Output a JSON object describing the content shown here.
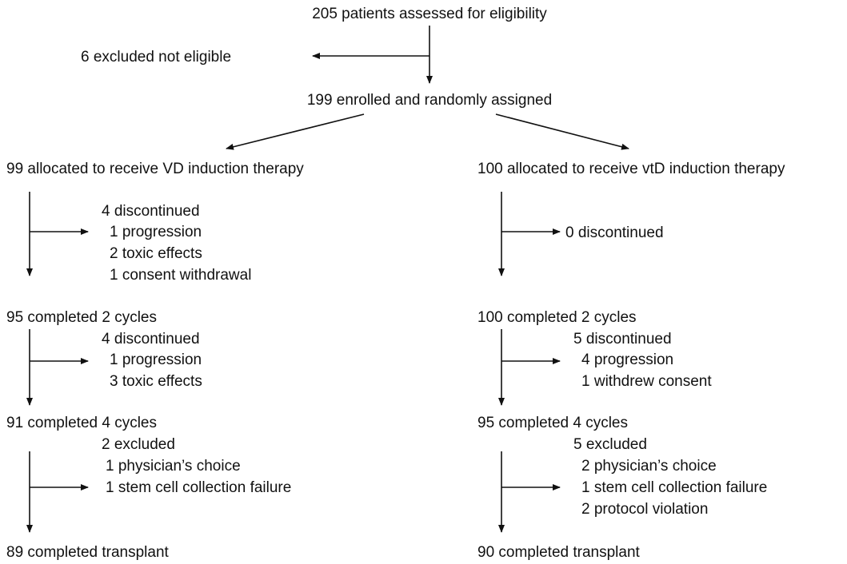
{
  "nodes": [
    {
      "label": "205 patients assessed for eligibility"
    },
    {
      "label": "6 excluded not eligible"
    },
    {
      "label": "199 enrolled and randomly assigned"
    },
    {
      "label": "99 allocated to receive VD induction therapy"
    },
    {
      "label": "100 allocated to receive vtD induction therapy"
    },
    {
      "label": "4 discontinued"
    },
    {
      "label": "1 progression"
    },
    {
      "label": "2 toxic effects"
    },
    {
      "label": "1 consent withdrawal"
    },
    {
      "label": "0 discontinued"
    },
    {
      "label": "95 completed 2 cycles"
    },
    {
      "label": "100 completed 2 cycles"
    },
    {
      "label": "4 discontinued"
    },
    {
      "label": "1 progression"
    },
    {
      "label": "3 toxic effects"
    },
    {
      "label": "5 discontinued"
    },
    {
      "label": "4 progression"
    },
    {
      "label": "1 withdrew consent"
    },
    {
      "label": "91 completed 4 cycles"
    },
    {
      "label": "95 completed 4 cycles"
    },
    {
      "label": "2 excluded"
    },
    {
      "label": "1 physician’s choice"
    },
    {
      "label": "1 stem cell collection failure"
    },
    {
      "label": "5 excluded"
    },
    {
      "label": "2 physician’s choice"
    },
    {
      "label": "1 stem cell collection failure"
    },
    {
      "label": "2 protocol violation"
    },
    {
      "label": "89 completed transplant"
    },
    {
      "label": "90 completed transplant"
    }
  ]
}
